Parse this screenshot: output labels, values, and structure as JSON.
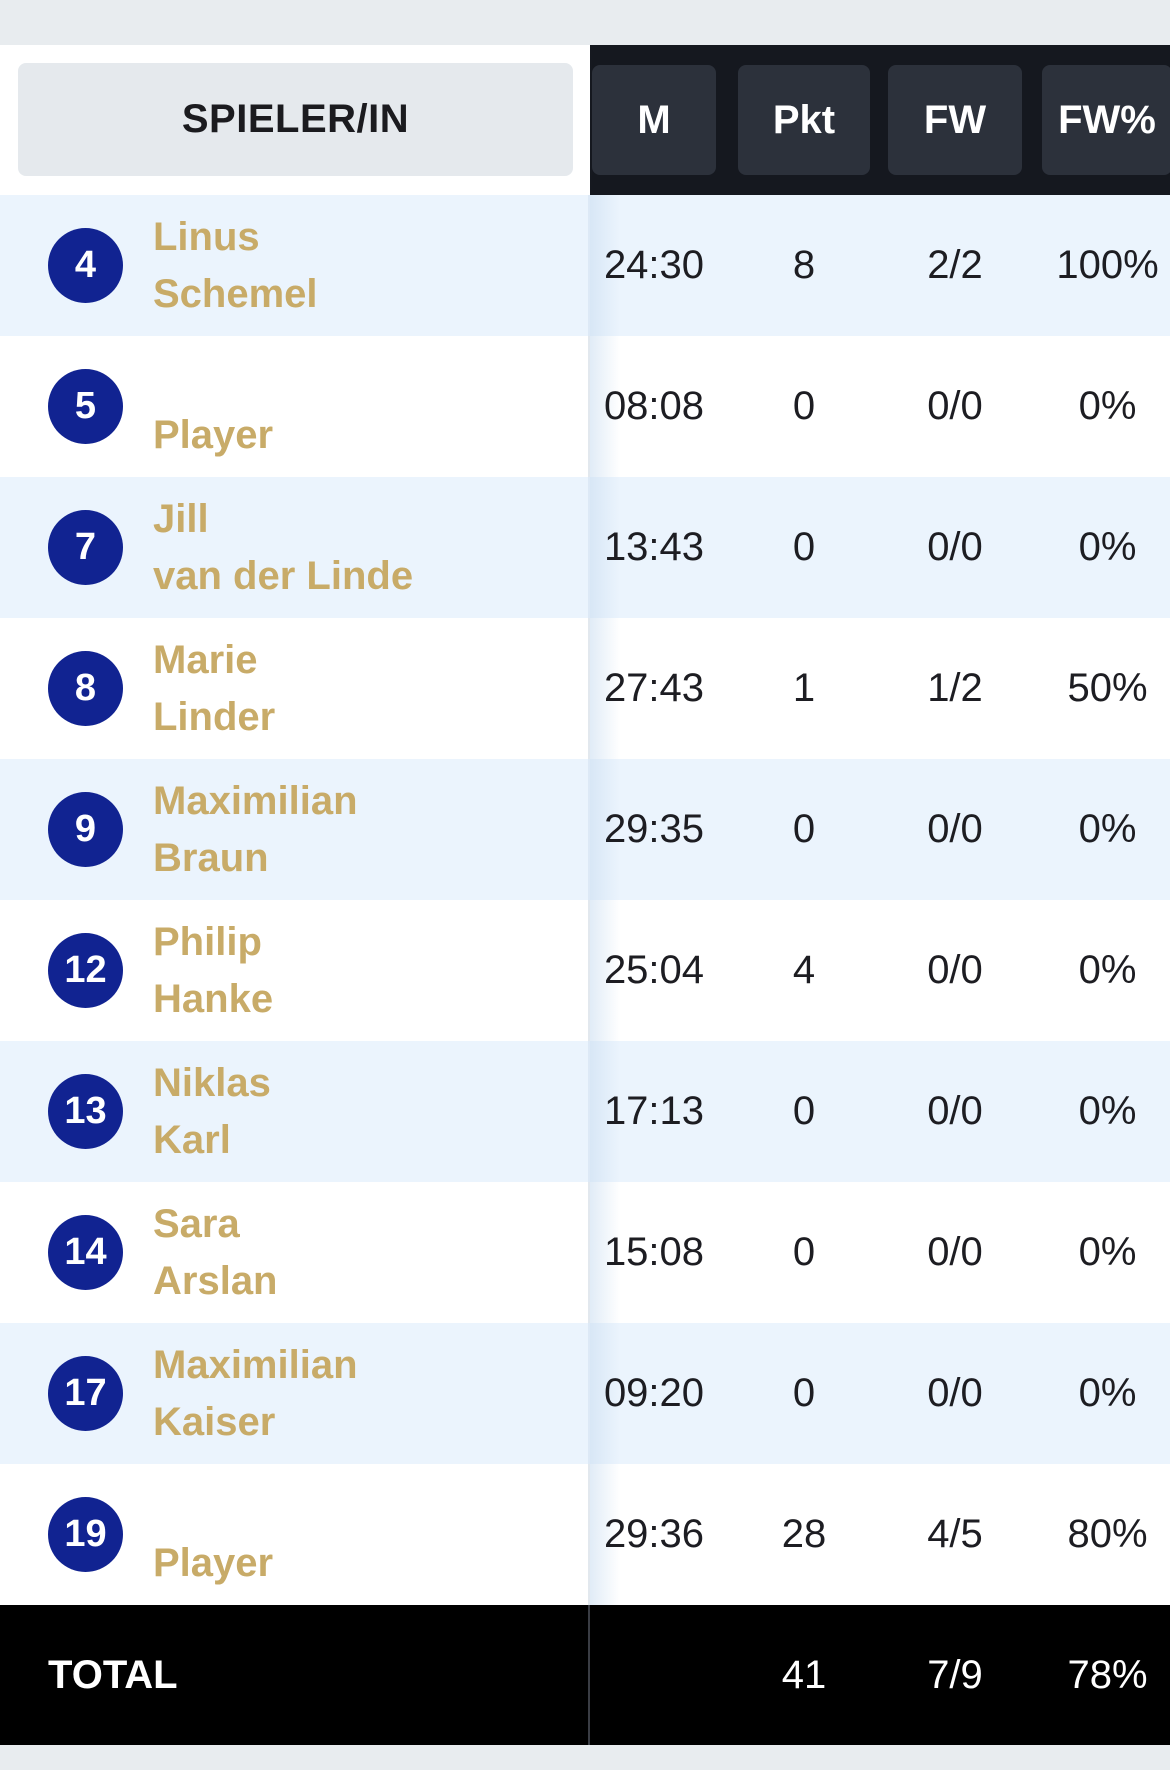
{
  "header": {
    "player_col": "SPIELER/IN",
    "columns": [
      "M",
      "Pkt",
      "FW",
      "FW%"
    ]
  },
  "rows": [
    {
      "number": "4",
      "first": "Linus",
      "last": "Schemel",
      "m": "24:30",
      "pkt": "8",
      "fw": "2/2",
      "fwp": "100%"
    },
    {
      "number": "5",
      "first": "",
      "last": "Player",
      "m": "08:08",
      "pkt": "0",
      "fw": "0/0",
      "fwp": "0%"
    },
    {
      "number": "7",
      "first": "Jill",
      "last": "van der Linde",
      "m": "13:43",
      "pkt": "0",
      "fw": "0/0",
      "fwp": "0%"
    },
    {
      "number": "8",
      "first": "Marie",
      "last": "Linder",
      "m": "27:43",
      "pkt": "1",
      "fw": "1/2",
      "fwp": "50%"
    },
    {
      "number": "9",
      "first": "Maximilian",
      "last": "Braun",
      "m": "29:35",
      "pkt": "0",
      "fw": "0/0",
      "fwp": "0%"
    },
    {
      "number": "12",
      "first": "Philip",
      "last": "Hanke",
      "m": "25:04",
      "pkt": "4",
      "fw": "0/0",
      "fwp": "0%"
    },
    {
      "number": "13",
      "first": "Niklas",
      "last": "Karl",
      "m": "17:13",
      "pkt": "0",
      "fw": "0/0",
      "fwp": "0%"
    },
    {
      "number": "14",
      "first": "Sara",
      "last": "Arslan",
      "m": "15:08",
      "pkt": "0",
      "fw": "0/0",
      "fwp": "0%"
    },
    {
      "number": "17",
      "first": "Maximilian",
      "last": "Kaiser",
      "m": "09:20",
      "pkt": "0",
      "fw": "0/0",
      "fwp": "0%"
    },
    {
      "number": "19",
      "first": "",
      "last": "Player",
      "m": "29:36",
      "pkt": "28",
      "fw": "4/5",
      "fwp": "80%"
    }
  ],
  "total": {
    "label": "TOTAL",
    "m": "",
    "pkt": "41",
    "fw": "7/9",
    "fwp": "78%"
  },
  "colors": {
    "badge": "#112391",
    "name": "#c8ab68",
    "row_shade": "#ebf4fd",
    "header_dark": "#15181f",
    "header_cell": "#2c313b"
  }
}
